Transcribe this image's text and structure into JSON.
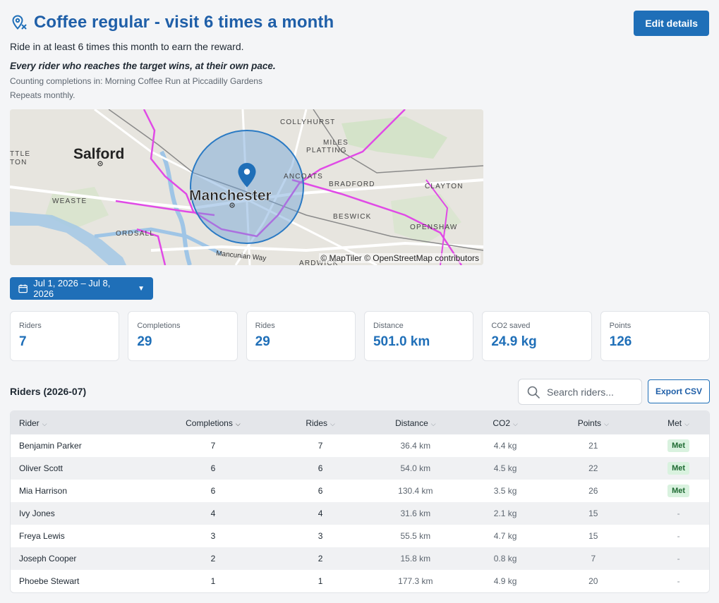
{
  "header": {
    "title": "Coffee regular - visit 6 times a month",
    "edit_label": "Edit details",
    "subtitle": "Ride in at least 6 times this month to earn the reward.",
    "tagline": "Every rider who reaches the target wins, at their own pace.",
    "counting": "Counting completions in: Morning Coffee Run at Piccadilly Gardens",
    "repeats": "Repeats monthly."
  },
  "map": {
    "attribution": "© MapTiler © OpenStreetMap contributors",
    "labels": {
      "salford": "Salford",
      "manchester": "Manchester",
      "collyhurst": "COLLYHURST",
      "miles_platting": "MILES\nPLATTING",
      "ancoats": "ANCOATS",
      "bradford": "BRADFORD",
      "clayton": "CLAYTON",
      "weaste": "WEASTE",
      "ordsall": "ORDSALL",
      "beswick": "BESWICK",
      "openshaw": "OPENSHAW",
      "mancunian_way": "Mancunian Way",
      "ardwick": "ARDWICK",
      "ttle": "TTLE",
      "ton": "TON"
    }
  },
  "date_range": "Jul 1, 2026 – Jul 8, 2026",
  "stats": [
    {
      "label": "Riders",
      "value": "7"
    },
    {
      "label": "Completions",
      "value": "29"
    },
    {
      "label": "Rides",
      "value": "29"
    },
    {
      "label": "Distance",
      "value": "501.0 km"
    },
    {
      "label": "CO2 saved",
      "value": "24.9 kg"
    },
    {
      "label": "Points",
      "value": "126"
    }
  ],
  "riders_title": "Riders (2026-07)",
  "search_placeholder": "Search riders...",
  "export_label": "Export CSV",
  "columns": [
    "Rider",
    "Completions",
    "Rides",
    "Distance",
    "CO2",
    "Points",
    "Met"
  ],
  "rows": [
    {
      "rider": "Benjamin Parker",
      "completions": "7",
      "rides": "7",
      "distance": "36.4 km",
      "co2": "4.4 kg",
      "points": "21",
      "met": "Met"
    },
    {
      "rider": "Oliver Scott",
      "completions": "6",
      "rides": "6",
      "distance": "54.0 km",
      "co2": "4.5 kg",
      "points": "22",
      "met": "Met"
    },
    {
      "rider": "Mia Harrison",
      "completions": "6",
      "rides": "6",
      "distance": "130.4 km",
      "co2": "3.5 kg",
      "points": "26",
      "met": "Met"
    },
    {
      "rider": "Ivy Jones",
      "completions": "4",
      "rides": "4",
      "distance": "31.6 km",
      "co2": "2.1 kg",
      "points": "15",
      "met": "-"
    },
    {
      "rider": "Freya Lewis",
      "completions": "3",
      "rides": "3",
      "distance": "55.5 km",
      "co2": "4.7 kg",
      "points": "15",
      "met": "-"
    },
    {
      "rider": "Joseph Cooper",
      "completions": "2",
      "rides": "2",
      "distance": "15.8 km",
      "co2": "0.8 kg",
      "points": "7",
      "met": "-"
    },
    {
      "rider": "Phoebe Stewart",
      "completions": "1",
      "rides": "1",
      "distance": "177.3 km",
      "co2": "4.9 kg",
      "points": "20",
      "met": "-"
    }
  ],
  "colors": {
    "accent": "#1f6fb8",
    "title": "#1f5fa8",
    "met_bg": "#d9f2df",
    "met_text": "#1f6b33"
  }
}
